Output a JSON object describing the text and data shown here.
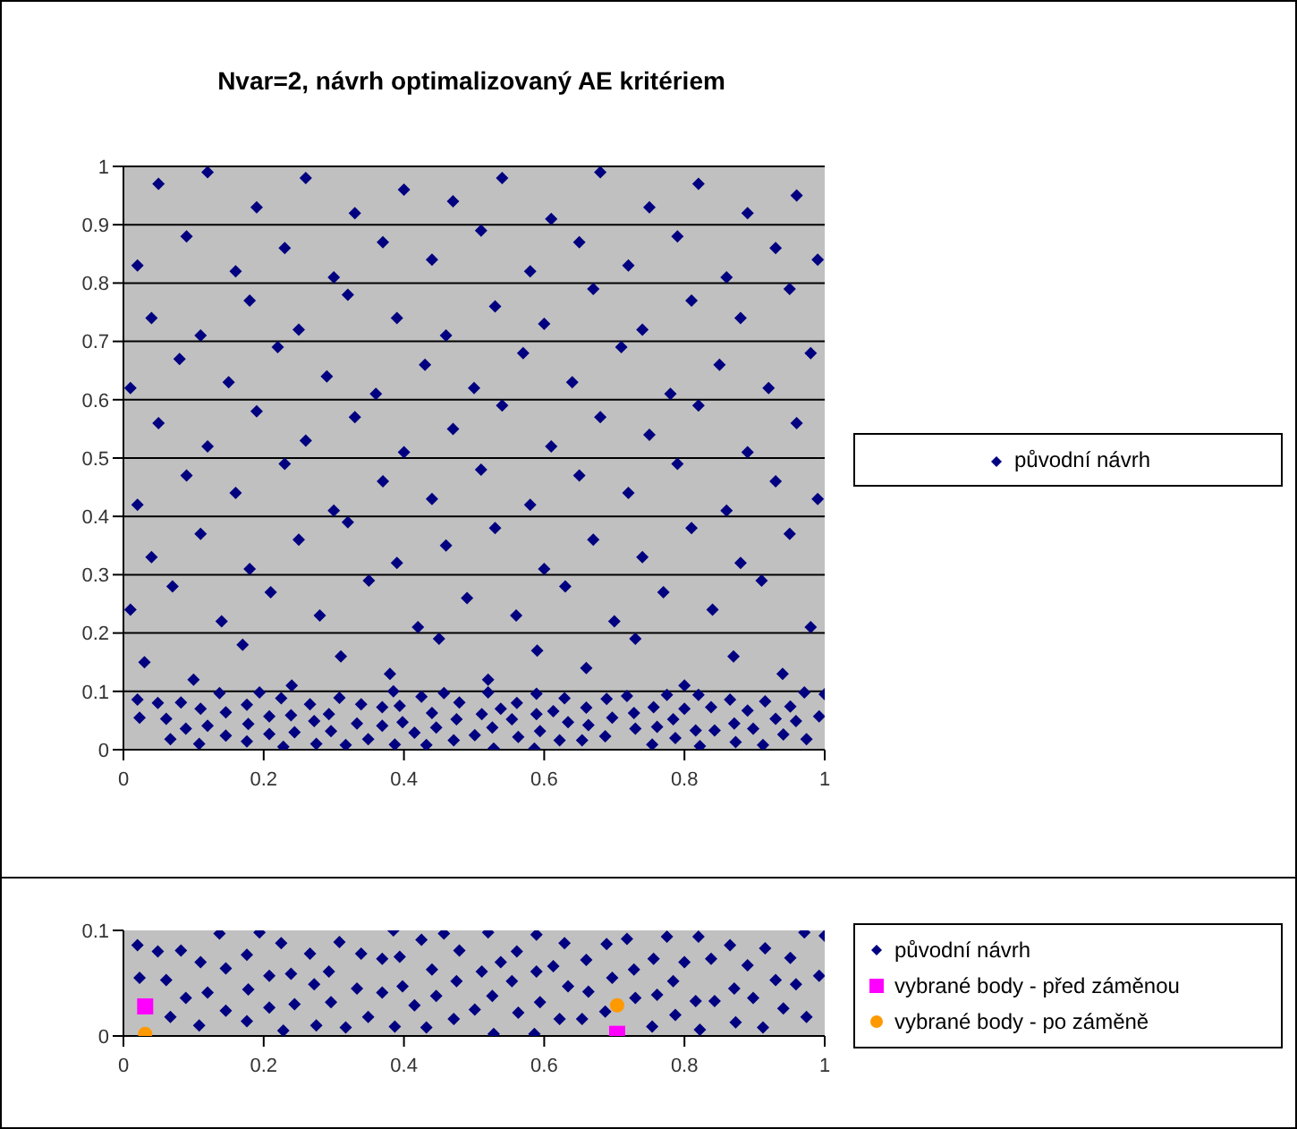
{
  "chart_data": [
    {
      "type": "scatter",
      "title": "Nvar=2, návrh optimalizovaný AE kritériem",
      "xlim": [
        0,
        1
      ],
      "ylim": [
        0,
        1
      ],
      "xticks": [
        0,
        0.2,
        0.4,
        0.6,
        0.8,
        1
      ],
      "yticks": [
        0,
        0.1,
        0.2,
        0.3,
        0.4,
        0.5,
        0.6,
        0.7,
        0.8,
        0.9,
        1
      ],
      "grid": "y",
      "legend": "right",
      "series": [
        {
          "name": "původní návrh",
          "color": "#000080",
          "marker": "diamond",
          "x": [
            0.02,
            0.023,
            0.049,
            0.061,
            0.067,
            0.082,
            0.089,
            0.108,
            0.11,
            0.12,
            0.137,
            0.146,
            0.146,
            0.176,
            0.178,
            0.176,
            0.194,
            0.208,
            0.208,
            0.225,
            0.228,
            0.239,
            0.244,
            0.266,
            0.272,
            0.275,
            0.293,
            0.296,
            0.308,
            0.317,
            0.333,
            0.339,
            0.349,
            0.369,
            0.369,
            0.385,
            0.387,
            0.394,
            0.398,
            0.415,
            0.425,
            0.432,
            0.44,
            0.446,
            0.457,
            0.471,
            0.475,
            0.479,
            0.501,
            0.511,
            0.52,
            0.526,
            0.528,
            0.538,
            0.554,
            0.561,
            0.563,
            0.589,
            0.589,
            0.594,
            0.586,
            0.613,
            0.622,
            0.629,
            0.634,
            0.654,
            0.66,
            0.663,
            0.687,
            0.689,
            0.697,
            0.718,
            0.728,
            0.73,
            0.754,
            0.756,
            0.761,
            0.775,
            0.784,
            0.787,
            0.8,
            0.816,
            0.822,
            0.82,
            0.838,
            0.843,
            0.865,
            0.871,
            0.873,
            0.89,
            0.898,
            0.912,
            0.915,
            0.93,
            0.941,
            0.951,
            0.959,
            0.971,
            0.974,
            0.992,
            1,
            0.03,
            0.1,
            0.17,
            0.24,
            0.31,
            0.38,
            0.45,
            0.52,
            0.59,
            0.66,
            0.73,
            0.8,
            0.87,
            0.94,
            0.01,
            0.07,
            0.14,
            0.21,
            0.28,
            0.35,
            0.42,
            0.49,
            0.56,
            0.63,
            0.7,
            0.77,
            0.84,
            0.91,
            0.98,
            0.04,
            0.11,
            0.18,
            0.25,
            0.32,
            0.39,
            0.46,
            0.53,
            0.6,
            0.67,
            0.74,
            0.81,
            0.88,
            0.95,
            0.02,
            0.09,
            0.16,
            0.23,
            0.3,
            0.37,
            0.44,
            0.51,
            0.58,
            0.65,
            0.72,
            0.79,
            0.86,
            0.93,
            0.99,
            0.05,
            0.12,
            0.19,
            0.26,
            0.33,
            0.4,
            0.47,
            0.54,
            0.61,
            0.68,
            0.75,
            0.82,
            0.89,
            0.96,
            0.01,
            0.08,
            0.15,
            0.22,
            0.29,
            0.36,
            0.43,
            0.5,
            0.57,
            0.64,
            0.71,
            0.78,
            0.85,
            0.92,
            0.98,
            0.04,
            0.11,
            0.18,
            0.25,
            0.32,
            0.39,
            0.46,
            0.53,
            0.6,
            0.67,
            0.74,
            0.81,
            0.88,
            0.95,
            0.02,
            0.09,
            0.16,
            0.23,
            0.3,
            0.37,
            0.44,
            0.51,
            0.58,
            0.65,
            0.72,
            0.79,
            0.86,
            0.93,
            0.99,
            0.05,
            0.12,
            0.19,
            0.26,
            0.33,
            0.4,
            0.47,
            0.54,
            0.61,
            0.68,
            0.75,
            0.82,
            0.89,
            0.96
          ],
          "values": [
            0.086,
            0.055,
            0.08,
            0.053,
            0.018,
            0.081,
            0.036,
            0.01,
            0.07,
            0.041,
            0.097,
            0.064,
            0.024,
            0.077,
            0.044,
            0.014,
            0.098,
            0.057,
            0.027,
            0.088,
            0.005,
            0.059,
            0.03,
            0.078,
            0.049,
            0.01,
            0.061,
            0.032,
            0.089,
            0.008,
            0.045,
            0.078,
            0.018,
            0.073,
            0.041,
            0.1,
            0.009,
            0.075,
            0.047,
            0.029,
            0.091,
            0.008,
            0.063,
            0.038,
            0.097,
            0.016,
            0.052,
            0.081,
            0.025,
            0.061,
            0.098,
            0.038,
            0.002,
            0.07,
            0.052,
            0.08,
            0.022,
            0.096,
            0.061,
            0.032,
            0.002,
            0.066,
            0.016,
            0.088,
            0.047,
            0.016,
            0.072,
            0.042,
            0.023,
            0.087,
            0.055,
            0.092,
            0.063,
            0.036,
            0.009,
            0.073,
            0.039,
            0.094,
            0.052,
            0.02,
            0.07,
            0.033,
            0.006,
            0.094,
            0.073,
            0.033,
            0.086,
            0.045,
            0.013,
            0.067,
            0.036,
            0.008,
            0.083,
            0.053,
            0.026,
            0.074,
            0.049,
            0.098,
            0.018,
            0.057,
            0.095,
            0.15,
            0.12,
            0.18,
            0.11,
            0.16,
            0.13,
            0.19,
            0.12,
            0.17,
            0.14,
            0.19,
            0.11,
            0.16,
            0.13,
            0.24,
            0.28,
            0.22,
            0.27,
            0.23,
            0.29,
            0.21,
            0.26,
            0.23,
            0.28,
            0.22,
            0.27,
            0.24,
            0.29,
            0.21,
            0.33,
            0.37,
            0.31,
            0.36,
            0.39,
            0.32,
            0.35,
            0.38,
            0.31,
            0.36,
            0.33,
            0.38,
            0.32,
            0.37,
            0.42,
            0.47,
            0.44,
            0.49,
            0.41,
            0.46,
            0.43,
            0.48,
            0.42,
            0.47,
            0.44,
            0.49,
            0.41,
            0.46,
            0.43,
            0.56,
            0.52,
            0.58,
            0.53,
            0.57,
            0.51,
            0.55,
            0.59,
            0.52,
            0.57,
            0.54,
            0.59,
            0.51,
            0.56,
            0.62,
            0.67,
            0.63,
            0.69,
            0.64,
            0.61,
            0.66,
            0.62,
            0.68,
            0.63,
            0.69,
            0.61,
            0.66,
            0.62,
            0.68,
            0.74,
            0.71,
            0.77,
            0.72,
            0.78,
            0.74,
            0.71,
            0.76,
            0.73,
            0.79,
            0.72,
            0.77,
            0.74,
            0.79,
            0.83,
            0.88,
            0.82,
            0.86,
            0.81,
            0.87,
            0.84,
            0.89,
            0.82,
            0.87,
            0.83,
            0.88,
            0.81,
            0.86,
            0.84,
            0.97,
            0.99,
            0.93,
            0.98,
            0.92,
            0.96,
            0.94,
            0.98,
            0.91,
            0.99,
            0.93,
            0.97,
            0.92,
            0.95
          ]
        }
      ]
    },
    {
      "type": "scatter",
      "xlim": [
        0,
        1
      ],
      "ylim": [
        0,
        0.1
      ],
      "xticks": [
        0,
        0.2,
        0.4,
        0.6,
        0.8,
        1
      ],
      "yticks": [
        0,
        0.1
      ],
      "legend": "right",
      "series": [
        {
          "name": "původní návrh",
          "color": "#000080",
          "marker": "diamond",
          "x": [
            0.02,
            0.023,
            0.049,
            0.061,
            0.067,
            0.082,
            0.089,
            0.108,
            0.11,
            0.12,
            0.137,
            0.146,
            0.146,
            0.176,
            0.178,
            0.176,
            0.194,
            0.208,
            0.208,
            0.225,
            0.228,
            0.239,
            0.244,
            0.266,
            0.272,
            0.275,
            0.293,
            0.296,
            0.308,
            0.317,
            0.333,
            0.339,
            0.349,
            0.369,
            0.369,
            0.385,
            0.387,
            0.394,
            0.398,
            0.415,
            0.425,
            0.432,
            0.44,
            0.446,
            0.457,
            0.471,
            0.475,
            0.479,
            0.501,
            0.511,
            0.52,
            0.526,
            0.528,
            0.538,
            0.554,
            0.561,
            0.563,
            0.589,
            0.589,
            0.594,
            0.586,
            0.613,
            0.622,
            0.629,
            0.634,
            0.654,
            0.66,
            0.663,
            0.687,
            0.689,
            0.697,
            0.718,
            0.728,
            0.73,
            0.754,
            0.756,
            0.761,
            0.775,
            0.784,
            0.787,
            0.8,
            0.816,
            0.822,
            0.82,
            0.838,
            0.843,
            0.865,
            0.871,
            0.873,
            0.89,
            0.898,
            0.912,
            0.915,
            0.93,
            0.941,
            0.951,
            0.959,
            0.971,
            0.974,
            0.992,
            1
          ],
          "values": [
            0.086,
            0.055,
            0.08,
            0.053,
            0.018,
            0.081,
            0.036,
            0.01,
            0.07,
            0.041,
            0.097,
            0.064,
            0.024,
            0.077,
            0.044,
            0.014,
            0.098,
            0.057,
            0.027,
            0.088,
            0.005,
            0.059,
            0.03,
            0.078,
            0.049,
            0.01,
            0.061,
            0.032,
            0.089,
            0.008,
            0.045,
            0.078,
            0.018,
            0.073,
            0.041,
            0.1,
            0.009,
            0.075,
            0.047,
            0.029,
            0.091,
            0.008,
            0.063,
            0.038,
            0.097,
            0.016,
            0.052,
            0.081,
            0.025,
            0.061,
            0.098,
            0.038,
            0.002,
            0.07,
            0.052,
            0.08,
            0.022,
            0.096,
            0.061,
            0.032,
            0.002,
            0.066,
            0.016,
            0.088,
            0.047,
            0.016,
            0.072,
            0.042,
            0.023,
            0.087,
            0.055,
            0.092,
            0.063,
            0.036,
            0.009,
            0.073,
            0.039,
            0.094,
            0.052,
            0.02,
            0.07,
            0.033,
            0.006,
            0.094,
            0.073,
            0.033,
            0.086,
            0.045,
            0.013,
            0.067,
            0.036,
            0.008,
            0.083,
            0.053,
            0.026,
            0.074,
            0.049,
            0.098,
            0.018,
            0.057,
            0.095
          ]
        },
        {
          "name": "vybrané body - před záměnou",
          "color": "#ff00ff",
          "marker": "square",
          "x": [
            0.031,
            0.704
          ],
          "values": [
            0.028,
            0.002
          ]
        },
        {
          "name": "vybrané body - po záměně",
          "color": "#ff9900",
          "marker": "circle",
          "x": [
            0.031,
            0.704
          ],
          "values": [
            0.002,
            0.029
          ]
        }
      ]
    }
  ]
}
